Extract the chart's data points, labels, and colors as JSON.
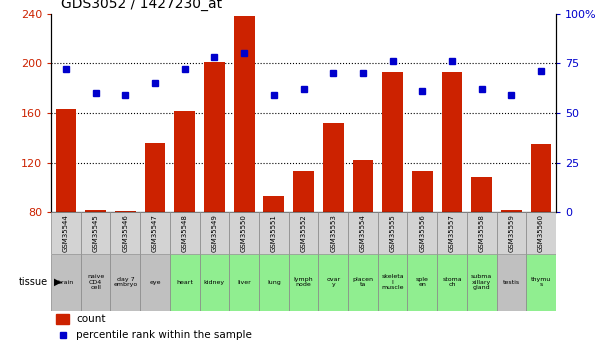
{
  "title": "GDS3052 / 1427230_at",
  "gsm_labels": [
    "GSM35544",
    "GSM35545",
    "GSM35546",
    "GSM35547",
    "GSM35548",
    "GSM35549",
    "GSM35550",
    "GSM35551",
    "GSM35552",
    "GSM35553",
    "GSM35554",
    "GSM35555",
    "GSM35556",
    "GSM35557",
    "GSM35558",
    "GSM35559",
    "GSM35560"
  ],
  "tissue_labels": [
    "brain",
    "naive\nCD4\ncell",
    "day 7\nembryо",
    "eye",
    "heart",
    "kidney",
    "liver",
    "lung",
    "lymph\nnode",
    "ovar\ny",
    "placen\nta",
    "skeleta\nl\nmuscle",
    "sple\nen",
    "stoma\nch",
    "subma\nxillary\ngland",
    "testis",
    "thymu\ns"
  ],
  "tissue_colors": [
    "#c0c0c0",
    "#c0c0c0",
    "#c0c0c0",
    "#c0c0c0",
    "#90ee90",
    "#90ee90",
    "#90ee90",
    "#90ee90",
    "#90ee90",
    "#90ee90",
    "#90ee90",
    "#90ee90",
    "#90ee90",
    "#90ee90",
    "#90ee90",
    "#c0c0c0",
    "#90ee90"
  ],
  "count_values": [
    163,
    82,
    81,
    136,
    162,
    201,
    238,
    93,
    113,
    152,
    122,
    193,
    113,
    193,
    108,
    82,
    135
  ],
  "percentile_values": [
    72,
    60,
    59,
    65,
    72,
    78,
    80,
    59,
    62,
    70,
    70,
    76,
    61,
    76,
    62,
    59,
    71
  ],
  "ylim_left": [
    80,
    240
  ],
  "ylim_right": [
    0,
    100
  ],
  "yticks_left": [
    80,
    120,
    160,
    200,
    240
  ],
  "yticks_right": [
    0,
    25,
    50,
    75,
    100
  ],
  "bar_color": "#cc2200",
  "dot_color": "#0000cc",
  "gsm_bg": "#d3d3d3"
}
